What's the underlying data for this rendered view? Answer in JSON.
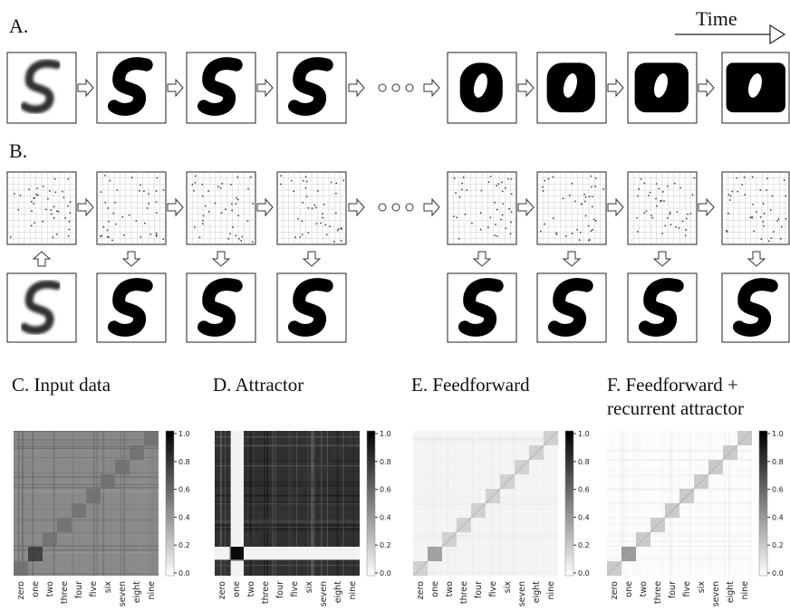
{
  "panel_a": {
    "label": "A.",
    "time_label": "Time"
  },
  "panel_b": {
    "label": "B."
  },
  "heatmaps": [
    {
      "title": [
        "C. Input data"
      ],
      "colorbar_ticks": [
        "1.0",
        "0.8",
        "0.6",
        "0.4",
        "0.2",
        "0.0"
      ],
      "categories": [
        "zero",
        "one",
        "two",
        "three",
        "four",
        "five",
        "six",
        "seven",
        "eight",
        "nine"
      ]
    },
    {
      "title": [
        "D. Attractor"
      ],
      "colorbar_ticks": [
        "1.0",
        "0.8",
        "0.6",
        "0.4",
        "0.2",
        "0.0"
      ],
      "categories": [
        "zero",
        "one",
        "two",
        "three",
        "four",
        "five",
        "six",
        "seven",
        "eight",
        "nine"
      ]
    },
    {
      "title": [
        "E. Feedforward"
      ],
      "colorbar_ticks": [
        "1.0",
        "0.8",
        "0.6",
        "0.4",
        "0.2",
        "0.0"
      ],
      "categories": [
        "zero",
        "one",
        "two",
        "three",
        "four",
        "five",
        "six",
        "seven",
        "eight",
        "nine"
      ]
    },
    {
      "title": [
        "F. Feedforward +",
        "recurrent attractor"
      ],
      "colorbar_ticks": [
        "1.0",
        "0.8",
        "0.6",
        "0.4",
        "0.2",
        "0.0"
      ],
      "categories": [
        "zero",
        "one",
        "two",
        "three",
        "four",
        "five",
        "six",
        "seven",
        "eight",
        "nine"
      ]
    }
  ]
}
